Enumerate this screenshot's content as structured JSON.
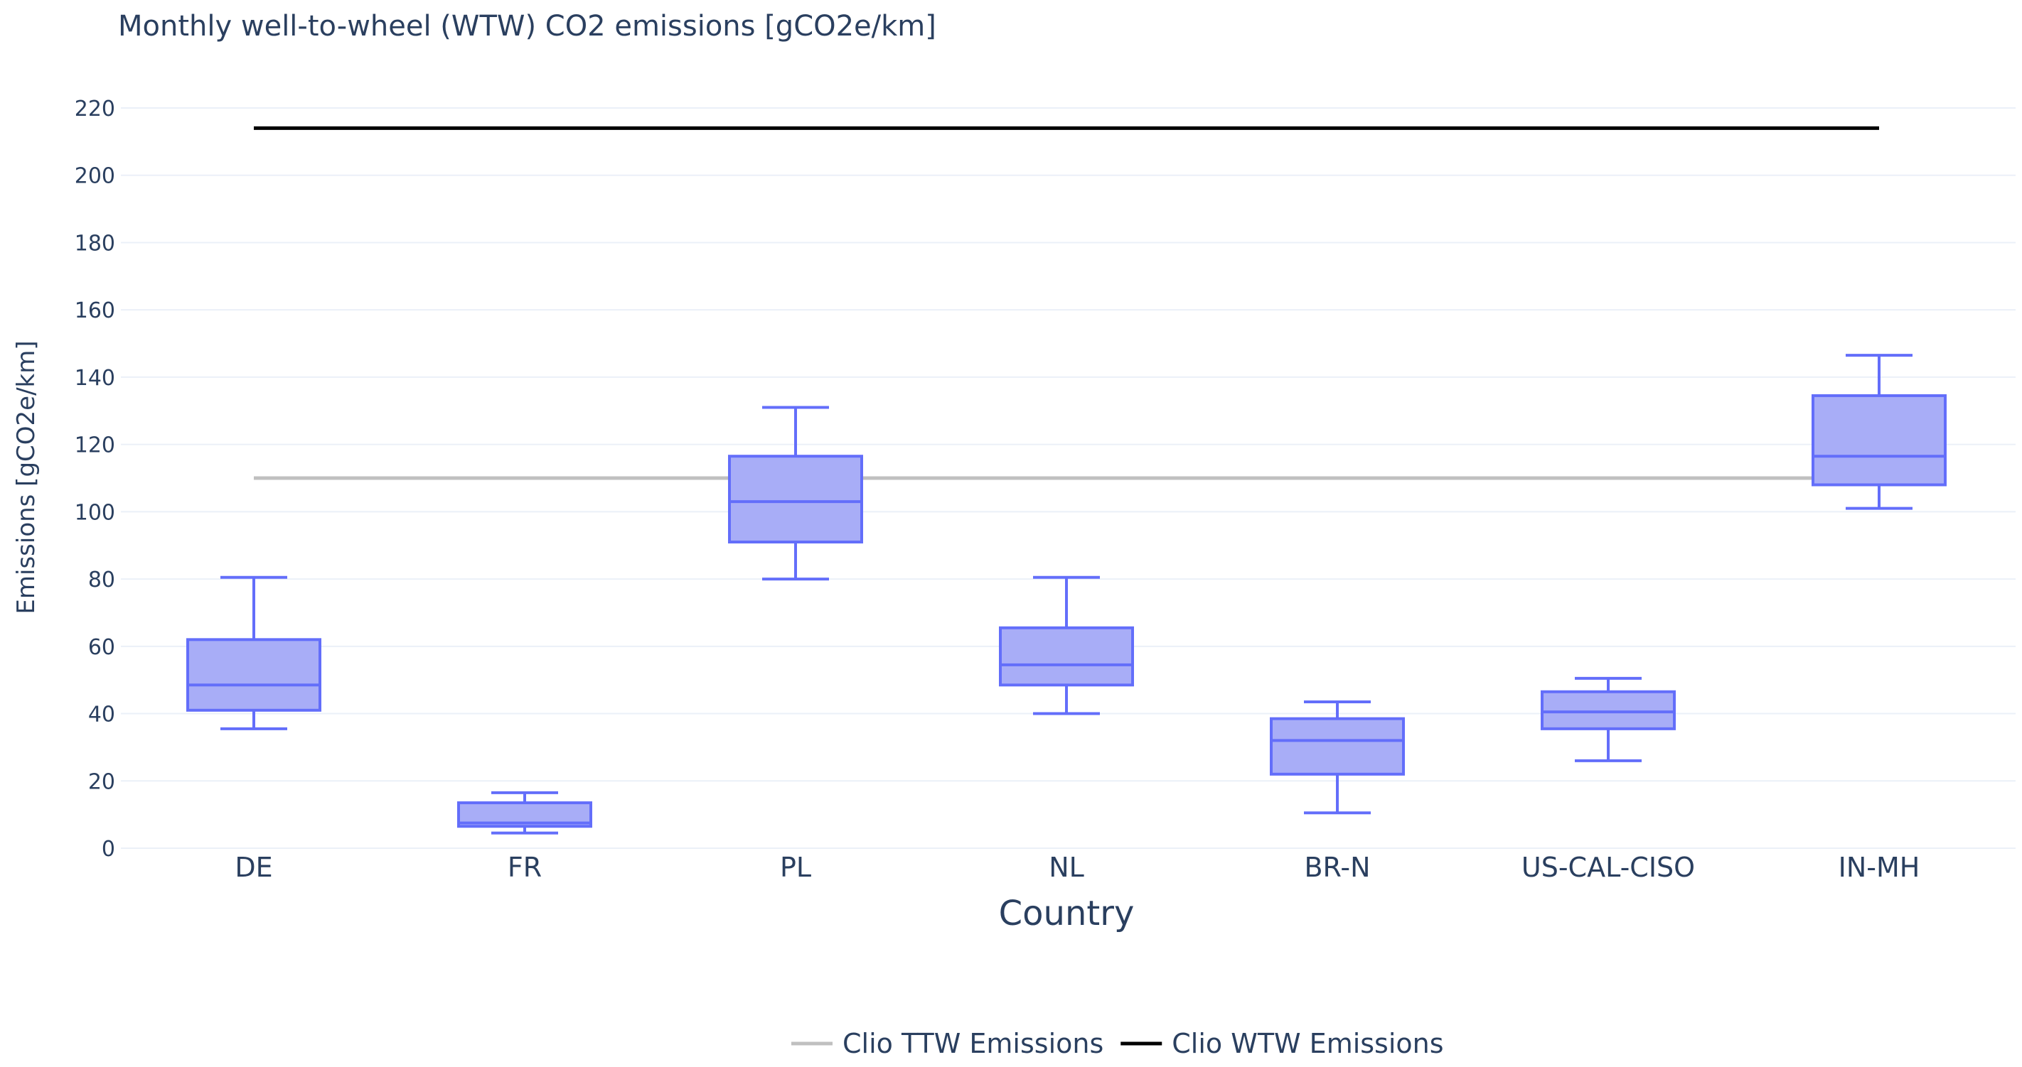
{
  "chart_data": {
    "type": "box",
    "title": "Monthly well-to-wheel (WTW) CO2 emissions [gCO2e/km]",
    "xlabel": "Country",
    "ylabel": "Emissions [gCO2e/km]",
    "ylim": [
      0,
      220
    ],
    "yticks": [
      0,
      20,
      40,
      60,
      80,
      100,
      120,
      140,
      160,
      180,
      200,
      220
    ],
    "grid": true,
    "categories": [
      "DE",
      "FR",
      "PL",
      "NL",
      "BR-N",
      "US-CAL-CISO",
      "IN-MH"
    ],
    "boxes": [
      {
        "category": "DE",
        "min": 35.5,
        "q1": 41,
        "median": 48.5,
        "q3": 62,
        "max": 80.5
      },
      {
        "category": "FR",
        "min": 4.5,
        "q1": 6.5,
        "median": 7.5,
        "q3": 13.5,
        "max": 16.5
      },
      {
        "category": "PL",
        "min": 80,
        "q1": 91,
        "median": 103,
        "q3": 116.5,
        "max": 131
      },
      {
        "category": "NL",
        "min": 40,
        "q1": 48.5,
        "median": 54.5,
        "q3": 65.5,
        "max": 80.5
      },
      {
        "category": "BR-N",
        "min": 10.5,
        "q1": 22,
        "median": 32,
        "q3": 38.5,
        "max": 43.5
      },
      {
        "category": "US-CAL-CISO",
        "min": 26,
        "q1": 35.5,
        "median": 40.5,
        "q3": 46.5,
        "max": 50.5
      },
      {
        "category": "IN-MH",
        "min": 101,
        "q1": 108,
        "median": 116.5,
        "q3": 134.5,
        "max": 146.5
      }
    ],
    "series": [
      {
        "name": "Clio TTW Emissions",
        "type": "line",
        "value": 110,
        "color": "#c0c0c0"
      },
      {
        "name": "Clio WTW Emissions",
        "type": "line",
        "value": 214,
        "color": "#000000"
      }
    ],
    "box_color": "#636efa",
    "box_fill": "#a8adf7",
    "legend": "bottom-center"
  }
}
